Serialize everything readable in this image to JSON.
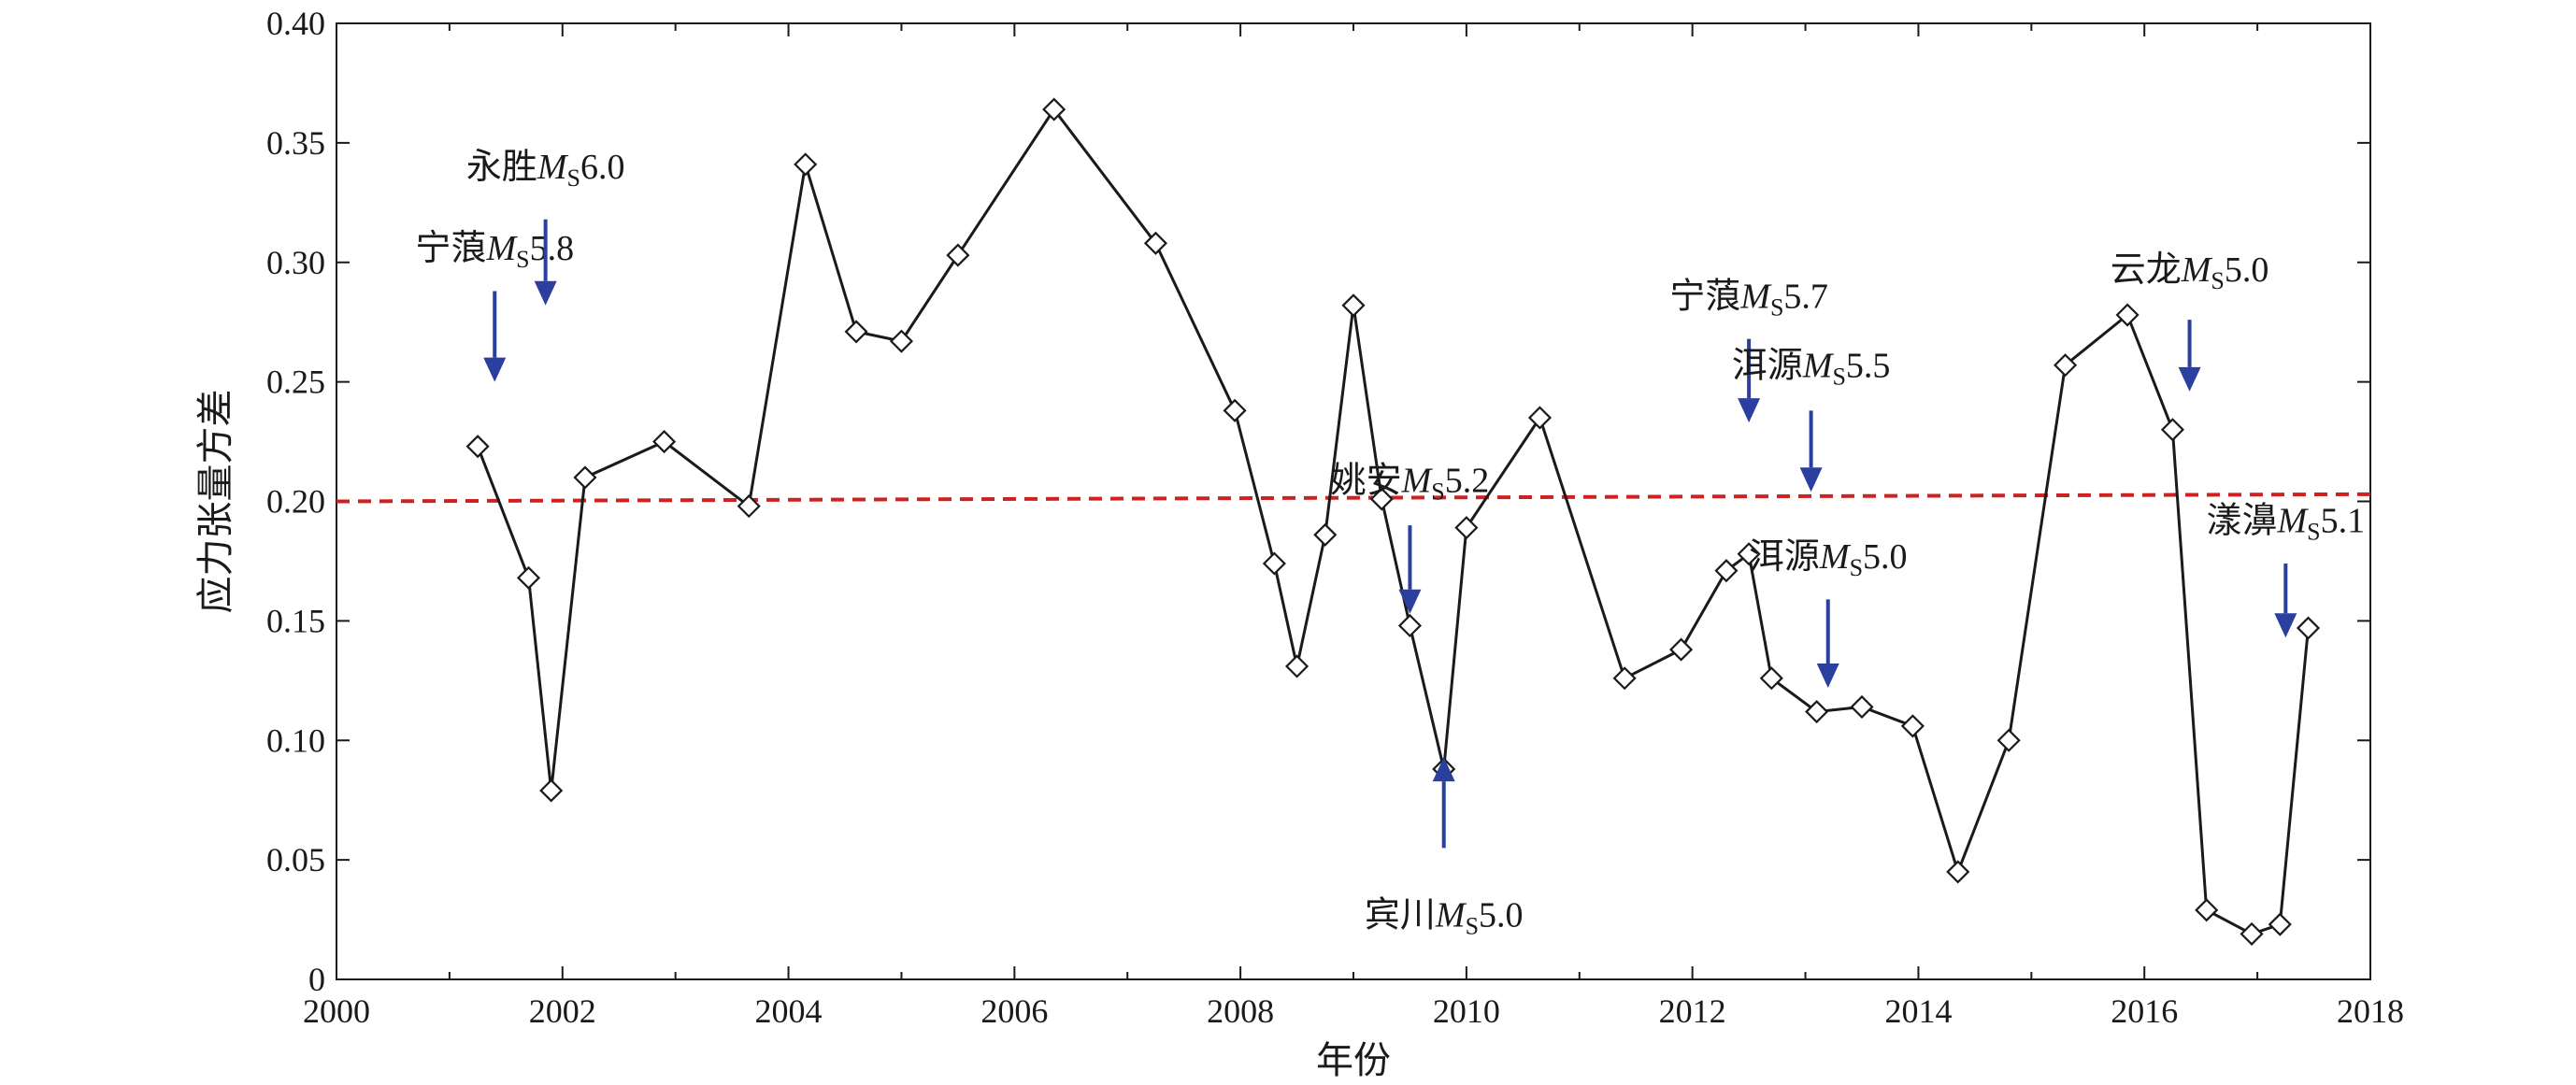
{
  "chart_data": {
    "type": "line",
    "xlabel": "年份",
    "ylabel": "应力张量方差",
    "xlim": [
      2000,
      2018
    ],
    "ylim": [
      0,
      0.4
    ],
    "x_ticks": [
      2000,
      2002,
      2004,
      2006,
      2008,
      2010,
      2012,
      2014,
      2016,
      2018
    ],
    "x_tick_labels": [
      "2000",
      "2002",
      "2004",
      "2006",
      "2008",
      "2010",
      "2012",
      "2014",
      "2016",
      "2018"
    ],
    "y_ticks": [
      0,
      0.05,
      0.1,
      0.15,
      0.2,
      0.25,
      0.3,
      0.35,
      0.4
    ],
    "y_tick_labels": [
      "0",
      "0.05",
      "0.10",
      "0.15",
      "0.20",
      "0.25",
      "0.30",
      "0.35",
      "0.40"
    ],
    "grid": false,
    "series": [
      {
        "marker": "diamond-open",
        "color": "#1a1a1a",
        "x": [
          2001.25,
          2001.7,
          2001.9,
          2002.2,
          2002.9,
          2003.65,
          2004.15,
          2004.6,
          2005.0,
          2005.5,
          2006.35,
          2007.25,
          2007.95,
          2008.3,
          2008.5,
          2008.75,
          2009.0,
          2009.25,
          2009.5,
          2009.8,
          2010.0,
          2010.65,
          2011.4,
          2011.9,
          2012.3,
          2012.5,
          2012.7,
          2013.1,
          2013.5,
          2013.95,
          2014.35,
          2014.8,
          2015.3,
          2015.85,
          2016.25,
          2016.55,
          2016.95,
          2017.2,
          2017.45
        ],
        "y": [
          0.223,
          0.168,
          0.079,
          0.21,
          0.225,
          0.198,
          0.341,
          0.271,
          0.267,
          0.303,
          0.364,
          0.308,
          0.238,
          0.174,
          0.131,
          0.186,
          0.282,
          0.201,
          0.148,
          0.088,
          0.189,
          0.235,
          0.126,
          0.138,
          0.171,
          0.178,
          0.126,
          0.112,
          0.114,
          0.106,
          0.045,
          0.1,
          0.257,
          0.278,
          0.23,
          0.029,
          0.019,
          0.023,
          0.147
        ]
      },
      {
        "style": "dashed",
        "color": "#cc2222",
        "x": [
          2000,
          2018
        ],
        "y": [
          0.2,
          0.203
        ]
      }
    ],
    "annotations": [
      {
        "name": "宁蒗",
        "mag": "5.8",
        "x": 2001.4,
        "label_y": 0.301,
        "tail_y": 0.288,
        "head_y": 0.25
      },
      {
        "name": "永胜",
        "mag": "6.0",
        "x": 2001.85,
        "label_y": 0.335,
        "tail_y": 0.318,
        "head_y": 0.282
      },
      {
        "name": "姚安",
        "mag": "5.2",
        "x": 2009.5,
        "label_y": 0.204,
        "tail_y": 0.19,
        "head_y": 0.153
      },
      {
        "name": "宾川",
        "mag": "5.0",
        "x": 2009.8,
        "label_y": 0.022,
        "tail_y": 0.055,
        "head_y": 0.093
      },
      {
        "name": "宁蒗",
        "mag": "5.7",
        "x": 2012.5,
        "label_y": 0.281,
        "tail_y": 0.268,
        "head_y": 0.233
      },
      {
        "name": "洱源",
        "mag": "5.5",
        "x": 2013.05,
        "label_y": 0.252,
        "tail_y": 0.238,
        "head_y": 0.204
      },
      {
        "name": "洱源",
        "mag": "5.0",
        "x": 2013.2,
        "label_y": 0.172,
        "tail_y": 0.159,
        "head_y": 0.122
      },
      {
        "name": "云龙",
        "mag": "5.0",
        "x": 2016.4,
        "label_y": 0.292,
        "tail_y": 0.276,
        "head_y": 0.246
      },
      {
        "name": "漾濞",
        "mag": "5.1",
        "x": 2017.25,
        "label_y": 0.187,
        "tail_y": 0.174,
        "head_y": 0.143
      }
    ],
    "annotation_letter": "M",
    "annotation_subscript": "S",
    "arrow_color": "#2a3f9e"
  }
}
